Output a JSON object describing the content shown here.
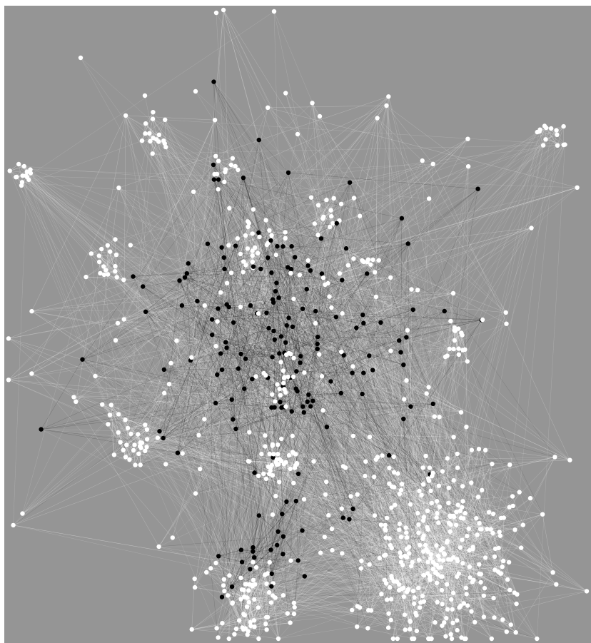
{
  "figure": {
    "type": "network-graph",
    "background_color": "#959595",
    "node_colors": {
      "light": "#ffffff",
      "dark": "#000000"
    },
    "edge_colors": {
      "light": "#ffffff",
      "dark": "#000000"
    },
    "labels_visible": false,
    "clusters": [
      {
        "name": "upper-left",
        "size": 14,
        "color": "light",
        "spread": 0.012
      },
      {
        "name": "top-left",
        "size": 16,
        "color": "light",
        "spread": 0.014
      },
      {
        "name": "upper-right",
        "size": 14,
        "color": "light",
        "spread": 0.013
      },
      {
        "name": "left-middle",
        "size": 18,
        "color": "light",
        "spread": 0.018
      },
      {
        "name": "center-upper-left",
        "size": 12,
        "color": "light",
        "spread": 0.014
      },
      {
        "name": "center-upper",
        "size": 24,
        "color": "light",
        "spread": 0.025
      },
      {
        "name": "center-upper-right",
        "size": 14,
        "color": "light",
        "spread": 0.016
      },
      {
        "name": "right-small",
        "size": 12,
        "color": "light",
        "spread": 0.016
      },
      {
        "name": "right-middle",
        "size": 16,
        "color": "light",
        "spread": 0.02
      },
      {
        "name": "core",
        "size": 150,
        "color": "dark",
        "spread": 0.12
      },
      {
        "name": "core-center",
        "size": 22,
        "color": "light",
        "spread": 0.02
      },
      {
        "name": "left-lower",
        "size": 30,
        "color": "light",
        "spread": 0.025
      },
      {
        "name": "lower-middle",
        "size": 40,
        "color": "light",
        "spread": 0.025
      },
      {
        "name": "bottom-right",
        "size": 320,
        "color": "light",
        "spread": 0.085
      },
      {
        "name": "bottom-left",
        "size": 70,
        "color": "light",
        "spread": 0.035
      },
      {
        "name": "lower-dark",
        "size": 22,
        "color": "dark",
        "spread": 0.04
      },
      {
        "name": "scattered",
        "size": 110,
        "color": "light",
        "spread": 0.22
      }
    ],
    "isolated_nodes": 8
  }
}
